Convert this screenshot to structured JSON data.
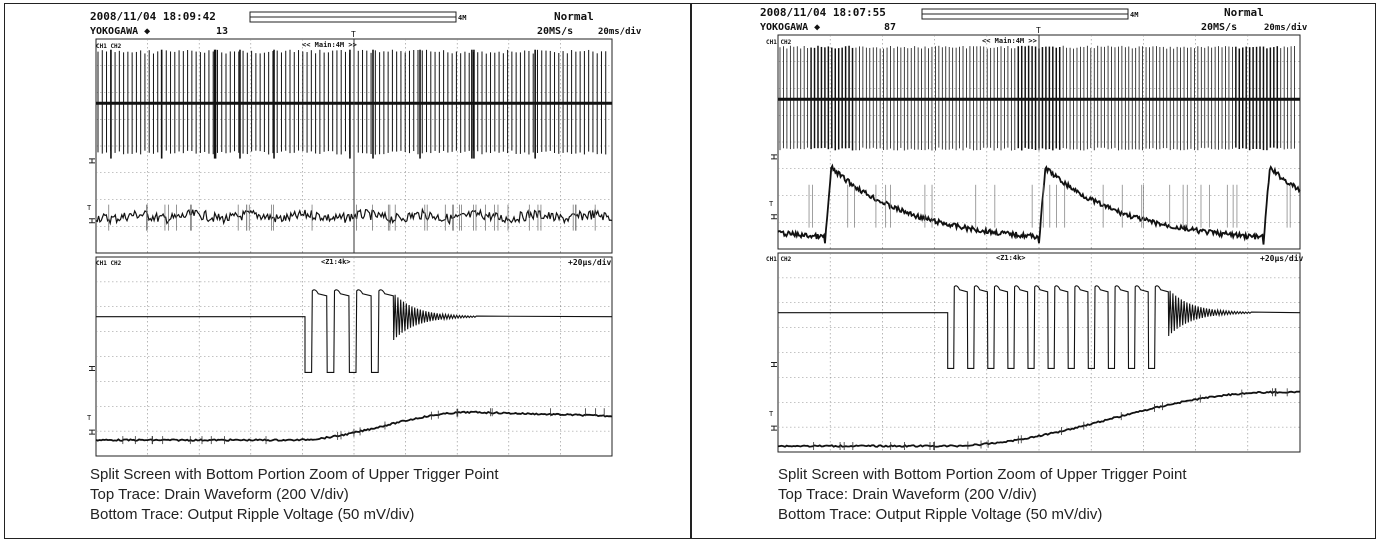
{
  "panels": [
    {
      "header": {
        "datetime": "2008/11/04 18:09:42",
        "brand": "YOKOGAWA ◆",
        "acq_count": "13",
        "mode": "Normal",
        "sample_rate": "20MS/s",
        "timebase": "20ms/div",
        "memory": "4M"
      },
      "upper": {
        "label": "<< Main:4M >>",
        "ch_tag": "CH1 CH2"
      },
      "lower": {
        "label": "<Z1:4k>",
        "ch_tag": "CH1 CH2",
        "timebase": "+20µs/div"
      },
      "caption": {
        "line1": "Split Screen with Bottom Portion Zoom of Upper Trigger Point",
        "line2": "Top Trace: Drain Waveform (200 V/div)",
        "line3": "Bottom Trace: Output Ripple Voltage (50 mV/div)"
      }
    },
    {
      "header": {
        "datetime": "2008/11/04 18:07:55",
        "brand": "YOKOGAWA ◆",
        "acq_count": "87",
        "mode": "Normal",
        "sample_rate": "20MS/s",
        "timebase": "20ms/div",
        "memory": "4M"
      },
      "upper": {
        "label": "<< Main:4M >>",
        "ch_tag": "CH1 CH2"
      },
      "lower": {
        "label": "<Z1:4k>",
        "ch_tag": "CH1 CH2",
        "timebase": "+20µs/div"
      },
      "caption": {
        "line1": "Split Screen with Bottom Portion Zoom of Upper Trigger Point",
        "line2": "Top Trace: Drain Waveform (200 V/div)",
        "line3": "Bottom Trace: Output Ripple Voltage (50 mV/div)"
      }
    }
  ],
  "chart_data": [
    {
      "type": "line",
      "title": "",
      "grid": true,
      "x_divisions": 10,
      "y_divisions": 8,
      "series": [
        {
          "trace": "drain",
          "pattern": "continuous-switching",
          "pulse_count": 120
        },
        {
          "trace": "ripple",
          "pattern": "noisy-flat"
        },
        {
          "trace": "drain-zoom",
          "pattern": "burst",
          "pulse_count": 4,
          "ringing": true
        },
        {
          "trace": "ripple-zoom",
          "pattern": "slow-rise"
        }
      ]
    },
    {
      "type": "line",
      "title": "",
      "grid": true,
      "x_divisions": 10,
      "y_divisions": 8,
      "series": [
        {
          "trace": "drain",
          "pattern": "burst-mode-switching",
          "bursts": 3
        },
        {
          "trace": "ripple",
          "pattern": "sawtooth-decay",
          "cycles": 3
        },
        {
          "trace": "drain-zoom",
          "pattern": "burst",
          "pulse_count": 11,
          "ringing": true
        },
        {
          "trace": "ripple-zoom",
          "pattern": "slow-rise"
        }
      ]
    }
  ]
}
